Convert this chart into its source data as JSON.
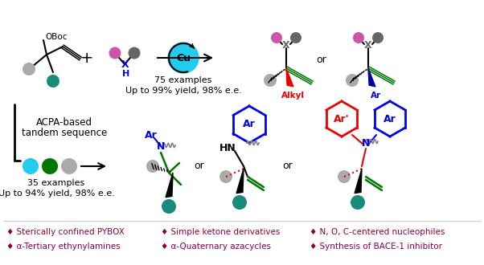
{
  "bg_color": "#ffffff",
  "dark_red": "#8B0045",
  "legend_row1": [
    "♦ Sterically confined PYBOX",
    "♦ Simple ketone derivatives",
    "♦ N, O, C-centered nucleophiles"
  ],
  "legend_row2": [
    "♦ α-Tertiary ethynylamines",
    "♦ α-Quaternary azacycles",
    "♦ Synthesis of BACE-1 inhibitor"
  ],
  "colors": {
    "teal": "#1a8a7a",
    "gray_light": "#aaaaaa",
    "gray_dark": "#666666",
    "purple": "#CC55AA",
    "cyan_cu": "#22CCEE",
    "green_dark": "#007700",
    "blue": "#0000EE",
    "red": "#EE0000",
    "navy": "#000099",
    "dark_red": "#8B0045"
  }
}
